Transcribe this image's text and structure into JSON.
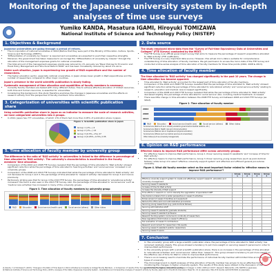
{
  "header": {
    "title_line1": "Monitoring of the Japanese university system by in-depth",
    "title_line2": "analyses of time use surveys",
    "authors": "Yumiko KANDA, Masatura IGAMI, Hiroyuki TOMIZAWA",
    "institute": "National Institute of Science and Technology Policy (NISTEP)"
  },
  "s1": {
    "heading": "1. Objectives & Background",
    "p1": "Japanese universities are going through a period of reform.",
    "b1": "The incorporation of national universities in 2004 (Before that they were part of the Ministry of Education, Culture, Sports, Science and Technology (MEXT)).",
    "b2": "'Differentiation of university by mission' is required and universities are expected to push their respective strengths.",
    "b3": "Moreover, the government has taken measures to encourage the \"differentiation of university by mission\" through the allocation of the management expenses grants for national universities.",
    "b4": "The total amount of the management expenses grants was reduced by 1% annually via \"Basic Policies for Economic and Fiscal Policy Management and Structural Reform 2006\" and has been consistently reduced by about 4% since.",
    "sub1": "Under such situation, Japan is experiencing low growth of R&D expenditure and the number of researchers.",
    "b5": "The higher education sector, especially national universities, in Japan shows lower growth in R&D expenditures and the number of researchers compared to other major countries.",
    "sub2": "Japan's presence in the world scientific publication is slowly fading.",
    "sub3": "Systematic management of time allocation and capabilities of faculty members is necessary.",
    "b6": "Currently faculty members are tasked with many different duties. How to achieve effective allocation of limited resources, both time and human resources, is essential for universities.",
    "b7": "Considering this background, this study therefore examines the changes in Japanese universities and the effects on research activity from the perspective of faculty members' time allocation."
  },
  "s3": {
    "heading": "3. Categorization of universities with scientific publication share",
    "sub1": "Using scientific publication share in Japan as an indicator to measure the scale of research activities, we have categorized universities into 4 groups.",
    "b1": "In 2012, Japan has 777 universities, of which 179 of them had more than 0.05% of publication share in Japan.",
    "fig_caption": "Figure 1. Scientific publication share in Japan",
    "legend": [
      "Group 1 (1%~)  4",
      "Group 2 (1%~)  13",
      "Group 3 (0.5%~1%)  27",
      "Group 4 (0.05%~0.5%)  135"
    ],
    "colors": [
      "#3b6fc1",
      "#e4a23b",
      "#7aa43c",
      "#8a5fb3"
    ]
  },
  "s5": {
    "heading": "5. Time allocation of faculty member by university group",
    "sub1": "The difference in the ratio of 'R&D activity' in universities is linked to the difference in percentage of time allocated to 'R&D activity'. The university's characteristics is manifested in the faculty members' time allocation.",
    "b1": "Comparison of the 2002 and 2008 FTE Surveys revealed that the percentage of time allocated to 'R&D activity' showed significant reduction while the percentage of time allocated to 'teaching activities' and 'social services' increased in all university groups.",
    "b2": "Comparison of the 2008 and 2013 FTE Surveys indicated that while the percentage of time allocated to 'R&D activity' did not decrease for Group 1 and 2, the percentage of time allocated to 'research activity' decreased for Group 3 and 4 since previously.",
    "b3": "Particularly striking was that for Group 4 the 2013 FTE Survey, the percentage of time allocated to 'educational activity' increased; this trend is also seen in the 2013 FTE Survey. Also, the percentage of time allocated to 'social service' such as 'medical care activities' has increased in many of the university groups.",
    "fig_caption": "Figure 3. Time allocation of faculty members by university group",
    "legend": [
      "R&D",
      "Education",
      "Social service (health care)",
      "Social service (others)",
      "Other duties"
    ],
    "colors": [
      "#3b6fc1",
      "#e4a23b",
      "#c8102e",
      "#7aa43c",
      "#9a9a9a"
    ]
  },
  "s2": {
    "heading": "2. Data source",
    "sub1": "The study employed micro-data from the \"Survey of Full-time Equivalency Data at Universities and Colleges\" (FTE Survey) conducted by the MEXT.",
    "b1": "The FTE Survey is an official government survey that aims to measure the percentage of research expenditure allocated to 'R&D activity' (FTE coefficient).",
    "b2": "The FTE Survey is a very important data source. However, this actual micro-data is suitable for comprehensive understanding of time allocation of faculty members. We got permission to access the micro-data of the FTE Survey and conducted a time-series analysis of time allocation of faculty members for three time points (2002, 2008 & 2013)."
  },
  "s4": {
    "heading": "4. Time allocation of faculty member",
    "sub1": "The time allocated to 'R&D activity' has changed significantly in the past 10 years. The change in time allocation has become apparent.",
    "b1": "Time allocated to 'R&D activity' accounted for the largest part of time allocation of faculty members.",
    "b2": "Comparison of the 2002 and 2008 FTE Surveys revealed that the percentage of time allocated to 'R&D activity' showed significant reduction while the percentage of time allocated to 'educational activity' and 'social service activity' relating to research, education and medical care increased significantly.",
    "b3": "Comparison of the 2008 and 2013 FTE Surveys revealed that while the percentage of time allocated to 'R&D activity' decreased slightly, the percentage of time allocated to 'social service' also, including medical treatment, increased.",
    "b4": "There was little change in time allocation between the 2008 FTE Survey and between 2008 and 2013 FTE Surveys (as listed).",
    "fig_caption": "Figure 2. Time allocation of faculty member",
    "rows": [
      {
        "year": "2002",
        "parts": [
          46.5,
          28.5,
          4.9,
          4.6,
          15.5
        ]
      },
      {
        "year": "2008",
        "parts": [
          36.5,
          26.1,
          10.5,
          8.9,
          18.0
        ]
      },
      {
        "year": "2013",
        "parts": [
          35.0,
          28.4,
          12.6,
          7.8,
          16.2
        ]
      }
    ],
    "colors": [
      "#3b6fc1",
      "#e4a23b",
      "#c8102e",
      "#7aa43c",
      "#9a9a9a"
    ],
    "legend": [
      "R&D",
      "Education",
      "Social service (health care)",
      "Social service (others)",
      "Other duties",
      "Social service (R&D such as in industry-academic-government-industrial relations, etc.)",
      "Social service (R&D in Health care and clinical education)",
      "Social service (Medical care in hospitals and physical education)",
      "Social service (Others (such as medical services at universities))",
      "Other duties (such as university management)"
    ]
  },
  "s6": {
    "heading": "6. Opinion on R&D performance",
    "sub1": "Effective means to improve R&D performance differ across university groups.",
    "b1": "For effective means to improve R&D performance, Group 1 chose 'securing research assistants' and 'increase of time for R&D activity'.",
    "b2": "For effective means to improve R&D performance, Group 3 chose 'securing young researchers (such as post-doctoral fellows)' while Group 4 to select 'effective university support system' and effective and efficient general procedures necessity.",
    "fig_caption": "Figure 4. What did faculty member select as the most important factor related to 'effective means to improve R&D performance'?",
    "table_header": [
      "",
      "Group 1",
      "Group 2",
      "Group 3",
      "Group 4"
    ],
    "table_rows": [
      "Effective university support system to create and effectively support research, education and university management",
      "Securing research assistants",
      "Increase of time for R&D activity",
      "Increase the intensity of R&D support",
      "Time efforts in research on not to intensify the upgradation of specialized staff",
      "Use decision-makers from a wider perspective in research activities",
      "Enhancement of research facilities and equipment",
      "Reduce the office work and administrative procedures",
      "Securing young researchers (e.g. post-doctoral fellows)",
      "Securing administrative staff",
      "Securing research assistants (graduate students)",
      "Securing research assistant profession",
      "Research funding system conducive to continuity of researchers",
      "Ease regulations that hinders a research efficiency",
      "Fair evaluation of research contributions",
      "Research environment for researchers' life events",
      "Securing research assistant postdoc researchers",
      "Securing research space"
    ]
  },
  "s7": {
    "heading": "7. Conclusion",
    "b1": "In 'the university' group with a large scientific publication share, the percentage of time allocated to 'R&D activity' has remained relatively steady. This group showed a tendency to put more weight on securing research personnel in order to improve R&D performance.",
    "b2": "In the university groups with a small scientific publication share, there is an increase in the percentage of time allocated to 'educational activities' and 'social service' rather than 'research'. This group showed a tendency to put more weight on the effective use of time for R&D in order to improve R&D performance.",
    "b3": "There is an increasing need to maximize the performance of individual faculty member with limited time according to the types of university.",
    "b4": "The chronological and in-depth analyses of time allocation of faculty member has proven to be an effective tool to monitoring the changes in higher university system. The results of this study were utilized in the discussion of the government's higher education policy."
  },
  "footer": {
    "ref1": "[1] Kanda, Y. & Tomizawa H. (2015). \"Changes in the Ratio of Time Spent on Work Activities by University & College Faculty Members - A Comparison of results of the 'Survey of Full-time Equivalency Data at Universities and Colleges' in 2002, 2008 and 2013\", Research Material No. 236, NISTEP (in Japanese).",
    "ref2": "[2] National Institute of Science and Technology Policy (2015). Analyses of the State of Japanese University System - Quantitative and Comparative Analyses of research activity by faculty, Japan and in the World, Discussion Paper No. 10 (in Japanese), http://hdl.handle.net/11035/3094 (in Japanese)."
  }
}
